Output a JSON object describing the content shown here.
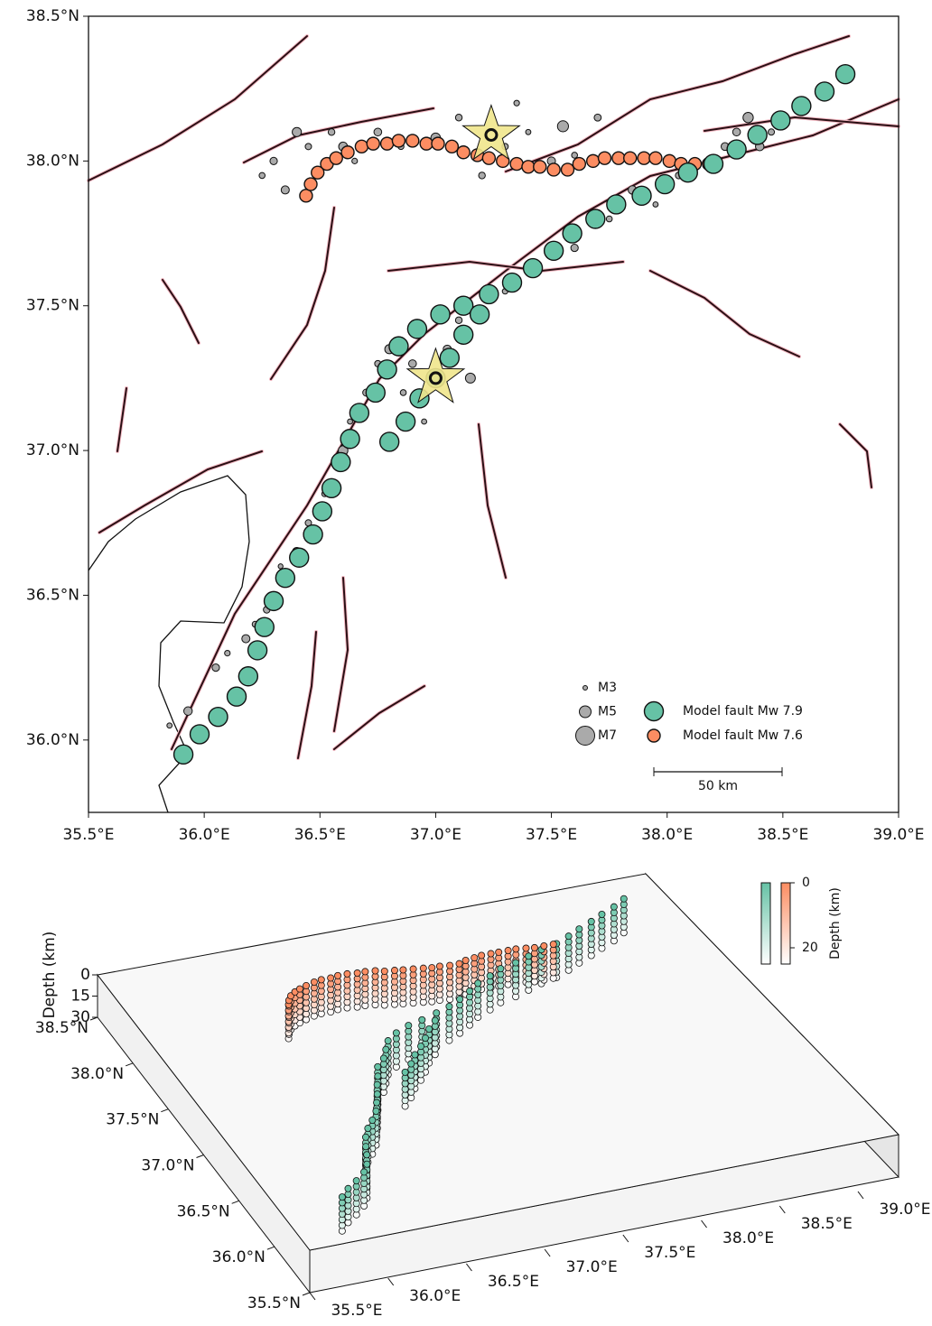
{
  "charts": [
    {
      "type": "scatter",
      "xlim": [
        35.5,
        39.0
      ],
      "ylim": [
        35.75,
        38.5
      ],
      "xticks": [
        {
          "value": 35.5,
          "label": "35.5°E"
        },
        {
          "value": 36.0,
          "label": "36.0°E"
        },
        {
          "value": 36.5,
          "label": "36.5°E"
        },
        {
          "value": 37.0,
          "label": "37.0°E"
        },
        {
          "value": 37.5,
          "label": "37.5°E"
        },
        {
          "value": 38.0,
          "label": "38.0°E"
        },
        {
          "value": 38.5,
          "label": "38.5°E"
        },
        {
          "value": 39.0,
          "label": "39.0°E"
        }
      ],
      "yticks": [
        {
          "value": 36.0,
          "label": "36.0°N"
        },
        {
          "value": 36.5,
          "label": "36.5°N"
        },
        {
          "value": 37.0,
          "label": "37.0°N"
        },
        {
          "value": 37.5,
          "label": "37.5°N"
        },
        {
          "value": 38.0,
          "label": "38.0°N"
        },
        {
          "value": 38.5,
          "label": "38.5°N"
        }
      ],
      "series": [
        {
          "name": "Model fault Mw 7.9",
          "color": "#66c2a5",
          "x": [
            35.91,
            35.98,
            36.06,
            36.14,
            36.19,
            36.23,
            36.26,
            36.3,
            36.35,
            36.41,
            36.47,
            36.51,
            36.55,
            36.59,
            36.63,
            36.67,
            36.74,
            36.79,
            36.84,
            36.92,
            37.02,
            37.12,
            37.23,
            37.33,
            37.42,
            37.51,
            37.59,
            37.69,
            37.78,
            37.89,
            37.99,
            38.09,
            38.2,
            38.3,
            38.39,
            38.49,
            38.58,
            38.68,
            38.77,
            36.8,
            36.87,
            36.93,
            37.0,
            37.06,
            37.12,
            37.19
          ],
          "values": [
            35.95,
            36.02,
            36.08,
            36.15,
            36.22,
            36.31,
            36.39,
            36.48,
            36.56,
            36.63,
            36.71,
            36.79,
            36.87,
            36.96,
            37.04,
            37.13,
            37.2,
            37.28,
            37.36,
            37.42,
            37.47,
            37.5,
            37.54,
            37.58,
            37.63,
            37.69,
            37.75,
            37.8,
            37.85,
            37.88,
            37.92,
            37.96,
            37.99,
            38.04,
            38.09,
            38.14,
            38.19,
            38.24,
            38.3,
            37.03,
            37.1,
            37.18,
            37.25,
            37.32,
            37.4,
            37.47
          ]
        },
        {
          "name": "Model fault Mw 7.6",
          "color": "#fc8d62",
          "x": [
            36.44,
            36.46,
            36.49,
            36.53,
            36.57,
            36.62,
            36.68,
            36.73,
            36.79,
            36.84,
            36.9,
            36.96,
            37.01,
            37.07,
            37.12,
            37.18,
            37.23,
            37.29,
            37.35,
            37.4,
            37.45,
            37.51,
            37.57,
            37.62,
            37.68,
            37.73,
            37.79,
            37.84,
            37.9,
            37.95,
            38.01,
            38.06,
            38.12,
            38.18
          ],
          "values": [
            37.88,
            37.92,
            37.96,
            37.99,
            38.01,
            38.03,
            38.05,
            38.06,
            38.06,
            38.07,
            38.07,
            38.06,
            38.06,
            38.05,
            38.03,
            38.02,
            38.01,
            38.0,
            37.99,
            37.98,
            37.98,
            37.97,
            37.97,
            37.99,
            38.0,
            38.01,
            38.01,
            38.01,
            38.01,
            38.01,
            38.0,
            37.99,
            37.99,
            37.99
          ]
        }
      ],
      "aftershocks": {
        "x": [
          35.85,
          35.93,
          35.97,
          36.05,
          36.1,
          36.18,
          36.22,
          36.27,
          36.33,
          36.4,
          36.45,
          36.52,
          36.6,
          36.63,
          36.7,
          36.75,
          36.8,
          36.86,
          36.9,
          36.95,
          37.05,
          37.1,
          37.15,
          37.3,
          37.6,
          37.75,
          37.85,
          37.95,
          38.05,
          38.25,
          38.35,
          38.45,
          38.6,
          38.7,
          38.78,
          36.25,
          36.3,
          36.35,
          36.4,
          36.45,
          36.55,
          36.6,
          36.65,
          36.75,
          36.85,
          37.0,
          37.1,
          37.3,
          37.4,
          37.5,
          37.55,
          37.6,
          37.7,
          38.3,
          38.4,
          37.35,
          37.2
        ],
        "y": [
          36.05,
          36.1,
          36.0,
          36.25,
          36.3,
          36.35,
          36.4,
          36.45,
          36.6,
          36.65,
          36.75,
          36.85,
          37.0,
          37.1,
          37.2,
          37.3,
          37.35,
          37.2,
          37.3,
          37.1,
          37.35,
          37.45,
          37.25,
          37.55,
          37.7,
          37.8,
          37.9,
          37.85,
          37.95,
          38.05,
          38.15,
          38.1,
          38.2,
          38.25,
          38.3,
          37.95,
          38.0,
          37.9,
          38.1,
          38.05,
          38.1,
          38.05,
          38.0,
          38.1,
          38.05,
          38.08,
          38.15,
          38.05,
          38.1,
          38.0,
          38.12,
          38.02,
          38.15,
          38.1,
          38.05,
          38.2,
          37.95
        ],
        "magnitude": [
          3.2,
          4.1,
          3.5,
          3.8,
          3.3,
          4.0,
          3.4,
          3.6,
          3.1,
          4.2,
          3.5,
          3.3,
          4.4,
          3.2,
          3.7,
          3.5,
          4.3,
          3.4,
          3.9,
          3.2,
          4.0,
          3.6,
          4.5,
          3.3,
          3.8,
          3.4,
          4.1,
          3.2,
          3.6,
          3.9,
          4.6,
          3.5,
          3.3,
          3.7,
          5.2,
          3.4,
          3.8,
          4.0,
          4.3,
          3.5,
          3.6,
          4.2,
          3.3,
          3.9,
          3.4,
          4.4,
          3.6,
          3.5,
          3.2,
          4.0,
          4.8,
          3.4,
          3.7,
          3.9,
          4.1,
          3.3,
          3.6
        ]
      },
      "epicenters": {
        "x": [
          37.24,
          37.0
        ],
        "y": [
          38.09,
          37.25
        ]
      },
      "size_legend": [
        {
          "label": "M3",
          "value": 3
        },
        {
          "label": "M5",
          "value": 5
        },
        {
          "label": "M7",
          "value": 7
        }
      ],
      "scale_bar": "50 km"
    },
    {
      "type": "scatter3d",
      "xlim": [
        35.5,
        39.0
      ],
      "ylim": [
        35.5,
        38.5
      ],
      "zlim": [
        0,
        30
      ],
      "xticks": [
        {
          "value": 35.5,
          "label": "35.5°E"
        },
        {
          "value": 36.0,
          "label": "36.0°E"
        },
        {
          "value": 36.5,
          "label": "36.5°E"
        },
        {
          "value": 37.0,
          "label": "37.0°E"
        },
        {
          "value": 37.5,
          "label": "37.5°E"
        },
        {
          "value": 38.0,
          "label": "38.0°E"
        },
        {
          "value": 38.5,
          "label": "38.5°E"
        },
        {
          "value": 39.0,
          "label": "39.0°E"
        }
      ],
      "yticks": [
        {
          "value": 35.5,
          "label": "35.5°N"
        },
        {
          "value": 36.0,
          "label": "36.0°N"
        },
        {
          "value": 36.5,
          "label": "36.5°N"
        },
        {
          "value": 37.0,
          "label": "37.0°N"
        },
        {
          "value": 37.5,
          "label": "37.5°N"
        },
        {
          "value": 38.0,
          "label": "38.0°N"
        },
        {
          "value": 38.5,
          "label": "38.5°N"
        }
      ],
      "zticks": [
        0,
        15,
        30
      ],
      "zlabel": "Depth (km)",
      "depths": [
        0,
        4,
        8,
        12,
        16,
        20,
        24
      ],
      "colorbar": {
        "label": "Depth (km)",
        "lim": [
          0,
          25
        ],
        "ticks": [
          0,
          20
        ]
      }
    }
  ]
}
